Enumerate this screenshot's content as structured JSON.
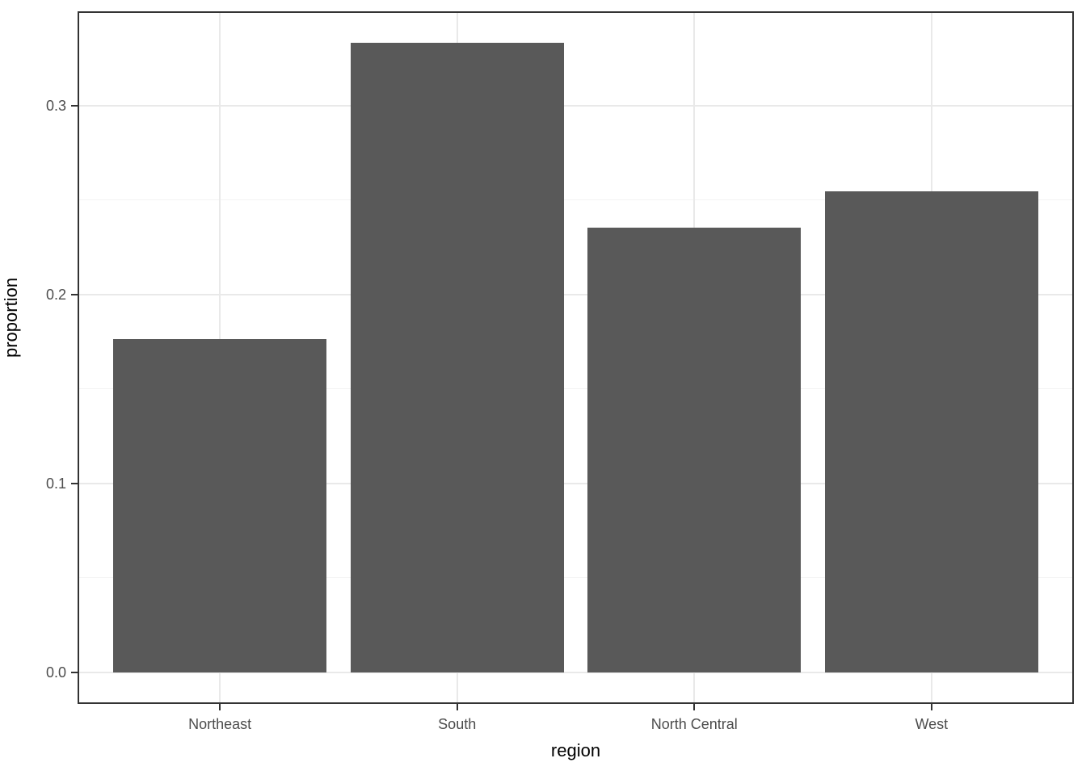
{
  "chart_data": {
    "type": "bar",
    "title": "",
    "xlabel": "region",
    "ylabel": "proportion",
    "categories": [
      "Northeast",
      "South",
      "North Central",
      "West"
    ],
    "values": [
      0.1765,
      0.3333,
      0.2353,
      0.2549
    ],
    "ylim": [
      -0.0167,
      0.35
    ],
    "x_domain": [
      0.4,
      4.6
    ],
    "bar_width_units": 0.9,
    "y_major_ticks": [
      0.0,
      0.1,
      0.2,
      0.3
    ],
    "y_tick_labels": [
      "0.0",
      "0.1",
      "0.2",
      "0.3"
    ],
    "y_minor_ticks": [
      0.05,
      0.15,
      0.25,
      0.35
    ],
    "grid": true,
    "legend_position": "none",
    "colors": {
      "bar_fill": "#595959",
      "panel_background": "#ffffff",
      "figure_background": "#ffffff",
      "panel_border": "#333333",
      "grid_major": "#e9e9e9",
      "grid_minor": "#f3f3f3",
      "tick_mark": "#333333",
      "axis_text": "#4d4d4d",
      "axis_title": "#000000"
    }
  }
}
